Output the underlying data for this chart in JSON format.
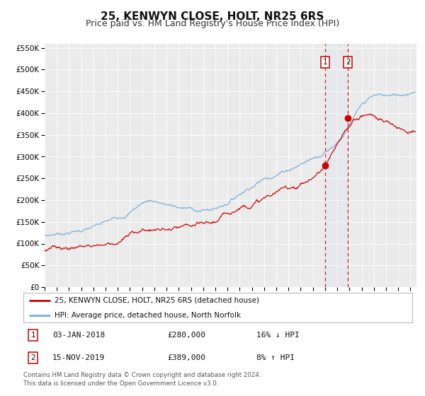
{
  "title": "25, KENWYN CLOSE, HOLT, NR25 6RS",
  "subtitle": "Price paid vs. HM Land Registry's House Price Index (HPI)",
  "title_fontsize": 11,
  "subtitle_fontsize": 9,
  "ylim": [
    0,
    560000
  ],
  "yticks": [
    0,
    50000,
    100000,
    150000,
    200000,
    250000,
    300000,
    350000,
    400000,
    450000,
    500000,
    550000
  ],
  "ytick_labels": [
    "£0",
    "£50K",
    "£100K",
    "£150K",
    "£200K",
    "£250K",
    "£300K",
    "£350K",
    "£400K",
    "£450K",
    "£500K",
    "£550K"
  ],
  "xlim_start": 1995.0,
  "xlim_end": 2025.5,
  "background_color": "#ffffff",
  "plot_bg_color": "#ebebeb",
  "grid_color": "#ffffff",
  "red_line_color": "#cc0000",
  "blue_line_color": "#7aaddc",
  "point1_x": 2018.01,
  "point1_y": 280000,
  "point2_x": 2019.88,
  "point2_y": 389000,
  "legend_label_red": "25, KENWYN CLOSE, HOLT, NR25 6RS (detached house)",
  "legend_label_blue": "HPI: Average price, detached house, North Norfolk",
  "ann1_date": "03-JAN-2018",
  "ann1_price": "£280,000",
  "ann1_hpi": "16% ↓ HPI",
  "ann2_date": "15-NOV-2019",
  "ann2_price": "£389,000",
  "ann2_hpi": "8% ↑ HPI",
  "footer": "Contains HM Land Registry data © Crown copyright and database right 2024.\nThis data is licensed under the Open Government Licence v3.0."
}
